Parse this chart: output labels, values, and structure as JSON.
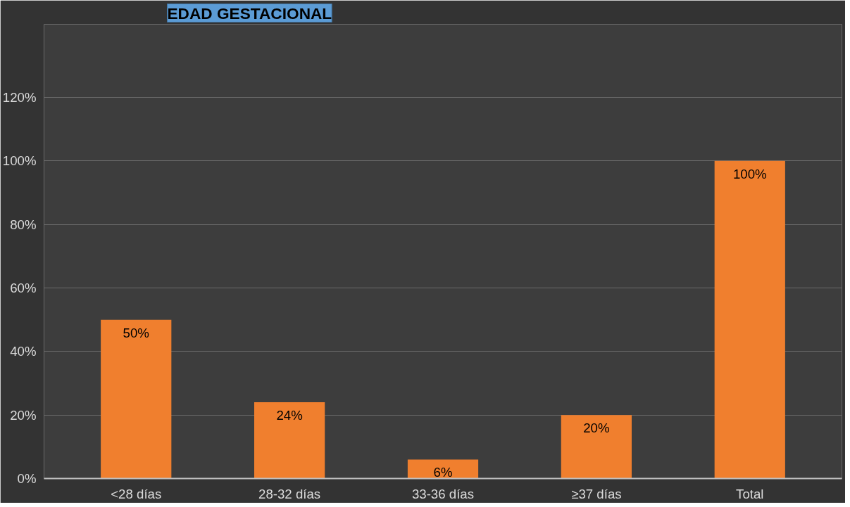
{
  "chart_data": {
    "type": "bar",
    "title": "EDAD GESTACIONAL",
    "categories": [
      "<28 días",
      "28-32 días",
      "33-36 días",
      "≥37 días",
      "Total"
    ],
    "values": [
      50,
      24,
      6,
      20,
      100
    ],
    "color": "#f07f2e",
    "ylim": [
      0,
      143
    ],
    "yticks": [
      {
        "value": 0,
        "label": "0%"
      },
      {
        "value": 20,
        "label": "20%"
      },
      {
        "value": 40,
        "label": "40%"
      },
      {
        "value": 60,
        "label": "60%"
      },
      {
        "value": 80,
        "label": "80%"
      },
      {
        "value": 100,
        "label": "100%"
      },
      {
        "value": 120,
        "label": "120%"
      }
    ],
    "value_labels": [
      "50%",
      "24%",
      "6%",
      "20%",
      "100%"
    ],
    "grid": "y"
  }
}
